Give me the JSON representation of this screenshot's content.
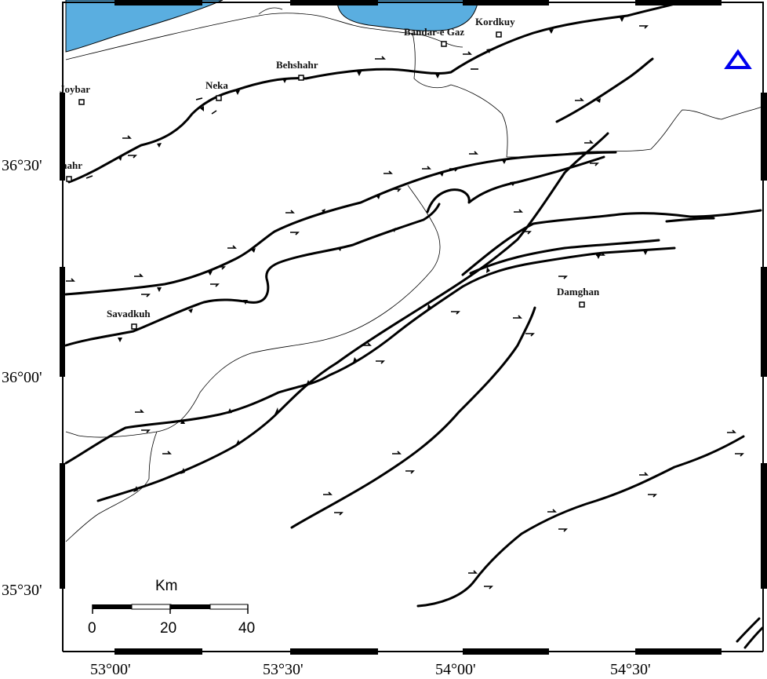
{
  "colors": {
    "sea": "#5aaee0",
    "frame": "#000000",
    "fault": "#000000",
    "marker": "#0000ee"
  },
  "map": {
    "towns": [
      {
        "name": "Bandar-e Gaz"
      },
      {
        "name": "Kordkuy"
      },
      {
        "name": "Behshahr"
      },
      {
        "name": "Neka"
      },
      {
        "name": "Joybar"
      },
      {
        "name": "Qaemshahr"
      },
      {
        "name": "Savadkuh"
      },
      {
        "name": "Damghan"
      }
    ],
    "lat_labels": [
      "36°30'",
      "36°00'",
      "35°30'"
    ],
    "lon_labels": [
      "53°00'",
      "53°30'",
      "54°00'",
      "54°30'"
    ],
    "scale_bar": {
      "unit": "Km",
      "ticks": [
        "0",
        "20",
        "40"
      ]
    },
    "marker_icon": "triangle-icon"
  }
}
